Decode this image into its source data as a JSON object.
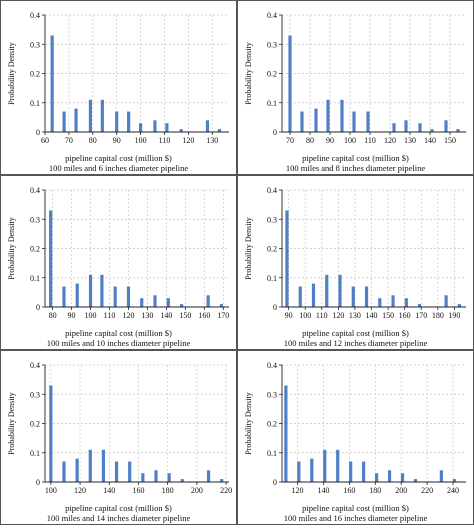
{
  "colors": {
    "bar": "#4f7fc4",
    "axis": "#222222",
    "grid": "#c8c8c8",
    "border": "#555555"
  },
  "chart_data": [
    {
      "type": "bar",
      "xlabel": "pipeline capital cost (million $)",
      "subtitle": "100 miles and 6 inches diameter pipeline",
      "ylabel": "Probability Density",
      "xlim": [
        60,
        137
      ],
      "ylim": [
        0,
        0.4
      ],
      "xticks": [
        60,
        70,
        80,
        90,
        100,
        110,
        120,
        130
      ],
      "yticks": [
        0,
        0.1,
        0.2,
        0.3,
        0.4
      ],
      "x": [
        63,
        68,
        73,
        79,
        84,
        90,
        95,
        100,
        106,
        111,
        117,
        122,
        128,
        133
      ],
      "values": [
        0.33,
        0.07,
        0.08,
        0.11,
        0.11,
        0.07,
        0.07,
        0.03,
        0.04,
        0.03,
        0.01,
        0.0,
        0.04,
        0.01
      ]
    },
    {
      "type": "bar",
      "xlabel": "pipeline capital cost (million $)",
      "subtitle": "100 miles and 8 inches diameter pipeline",
      "ylabel": "Probability Density",
      "xlim": [
        66,
        158
      ],
      "ylim": [
        0,
        0.4
      ],
      "xticks": [
        70,
        80,
        90,
        100,
        110,
        120,
        130,
        140,
        150
      ],
      "yticks": [
        0,
        0.1,
        0.2,
        0.3,
        0.4
      ],
      "x": [
        70,
        76,
        83,
        89,
        96,
        102,
        109,
        115,
        122,
        128,
        135,
        141,
        148,
        154
      ],
      "values": [
        0.33,
        0.07,
        0.08,
        0.11,
        0.11,
        0.07,
        0.07,
        0.0,
        0.03,
        0.04,
        0.03,
        0.01,
        0.04,
        0.01
      ]
    },
    {
      "type": "bar",
      "xlabel": "pipeline capital cost (million $)",
      "subtitle": "100 miles and 10 inches diameter pipeline",
      "ylabel": "Probability Density",
      "xlim": [
        76,
        173
      ],
      "ylim": [
        0,
        0.4
      ],
      "xticks": [
        80,
        90,
        100,
        110,
        120,
        130,
        140,
        150,
        160,
        170
      ],
      "yticks": [
        0,
        0.1,
        0.2,
        0.3,
        0.4
      ],
      "x": [
        79,
        86,
        93,
        100,
        106,
        113,
        120,
        127,
        134,
        141,
        148,
        155,
        162,
        169
      ],
      "values": [
        0.33,
        0.07,
        0.08,
        0.11,
        0.11,
        0.07,
        0.07,
        0.03,
        0.04,
        0.03,
        0.01,
        0.0,
        0.04,
        0.01
      ]
    },
    {
      "type": "bar",
      "xlabel": "pipeline capital cost (million $)",
      "subtitle": "100 miles and 12 inches diameter pipeline",
      "ylabel": "Probability Density",
      "xlim": [
        86,
        197
      ],
      "ylim": [
        0,
        0.4
      ],
      "xticks": [
        90,
        100,
        110,
        120,
        130,
        140,
        150,
        160,
        170,
        180,
        190
      ],
      "yticks": [
        0,
        0.1,
        0.2,
        0.3,
        0.4
      ],
      "x": [
        89,
        97,
        105,
        113,
        121,
        129,
        137,
        145,
        153,
        161,
        169,
        177,
        185,
        193
      ],
      "values": [
        0.33,
        0.07,
        0.08,
        0.11,
        0.11,
        0.07,
        0.07,
        0.03,
        0.04,
        0.03,
        0.01,
        0.0,
        0.04,
        0.01
      ]
    },
    {
      "type": "bar",
      "xlabel": "pipeline capital cost (million $)",
      "subtitle": "100 miles and 14 inches diameter pipeline",
      "ylabel": "Probability Density",
      "xlim": [
        96,
        222
      ],
      "ylim": [
        0,
        0.4
      ],
      "xticks": [
        100,
        120,
        140,
        160,
        180,
        200,
        220
      ],
      "yticks": [
        0,
        0.1,
        0.2,
        0.3,
        0.4
      ],
      "x": [
        100,
        109,
        118,
        127,
        136,
        145,
        154,
        163,
        172,
        181,
        190,
        199,
        208,
        217
      ],
      "values": [
        0.33,
        0.07,
        0.08,
        0.11,
        0.11,
        0.07,
        0.07,
        0.03,
        0.04,
        0.03,
        0.01,
        0.0,
        0.04,
        0.01
      ]
    },
    {
      "type": "bar",
      "xlabel": "pipeline capital cost (million $)",
      "subtitle": "100 miles and 16 inches diameter pipeline",
      "ylabel": "Probability Density",
      "xlim": [
        108,
        250
      ],
      "ylim": [
        0,
        0.4
      ],
      "xticks": [
        120,
        140,
        160,
        180,
        200,
        220,
        240
      ],
      "yticks": [
        0,
        0.1,
        0.2,
        0.3,
        0.4
      ],
      "x": [
        111,
        121,
        131,
        141,
        151,
        161,
        171,
        181,
        191,
        201,
        211,
        221,
        231,
        241
      ],
      "values": [
        0.33,
        0.07,
        0.08,
        0.11,
        0.11,
        0.07,
        0.07,
        0.03,
        0.04,
        0.03,
        0.01,
        0.0,
        0.04,
        0.01
      ]
    }
  ]
}
